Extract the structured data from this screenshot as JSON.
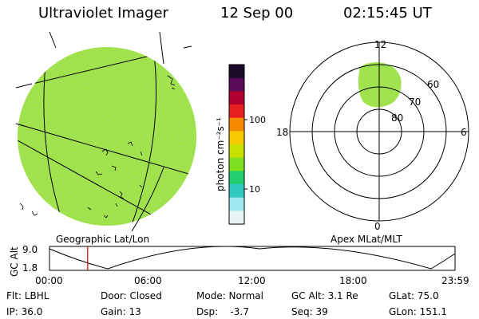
{
  "header": {
    "title": "Ultraviolet Imager",
    "date": "12 Sep 00",
    "time": "02:15:45 UT"
  },
  "colorbar": {
    "unit_label": "photon cm⁻²s⁻¹",
    "ticks": [
      "100",
      "10"
    ],
    "colors": [
      "#1a0a2a",
      "#5a0a5a",
      "#b00030",
      "#e82020",
      "#f58a00",
      "#f5c800",
      "#c8e000",
      "#7fe020",
      "#20d070",
      "#30c8c0",
      "#a0e8f0",
      "#e8f4f4"
    ]
  },
  "polar_plot": {
    "mlt_labels": {
      "top": "12",
      "left": "18",
      "right": "6",
      "bottom": "0"
    },
    "lat_labels": [
      "60",
      "70",
      "80"
    ]
  },
  "panel_labels": {
    "left": "Geographic Lat/Lon",
    "right": "Apex MLat/MLT"
  },
  "altitude_strip": {
    "ylabel": "GC Alt",
    "yticks": [
      "9.0",
      "1.8"
    ],
    "xticks": [
      "00:00",
      "06:00",
      "12:00",
      "18:00",
      "23:59"
    ],
    "current_time_marker_hours": 2.26
  },
  "status": {
    "flt": "Flt: LBHL",
    "door": "Door: Closed",
    "mode": "Mode: Normal",
    "gc_alt": "GC Alt: 3.1 Re",
    "glat": "GLat: 75.0",
    "ip": "IP: 36.0",
    "gain": "Gain: 13",
    "dsp": "Dsp:    -3.7",
    "seq": "Seq: 39",
    "glon": "GLon: 151.1"
  }
}
